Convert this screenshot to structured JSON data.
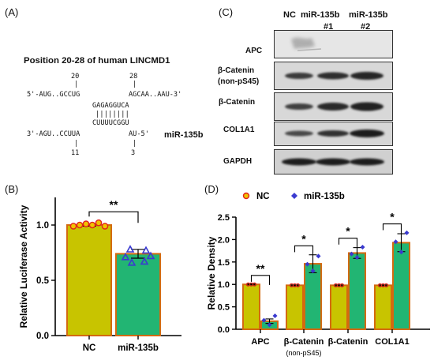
{
  "panels": {
    "a": {
      "letter": "(A)",
      "title": "Position 20-28 of human LINCMD1",
      "num_top_left": "20",
      "num_top_right": "28",
      "seq_top_left": "5'-AUG..GCCUG",
      "seq_top_right": "AGCAA..AAU-3'",
      "seq_mid_top": "GAGAGGUCA",
      "pair_bars": "||||||||",
      "seq_mid_bottom": "CUUUUCGGU",
      "seq_bottom_left": "3'-AGU..CCUUA",
      "seq_bottom_right": "AU-5'",
      "mirna_label": "miR-135b",
      "num_bottom_left": "11",
      "num_bottom_right": "3"
    },
    "b": {
      "letter": "(B)"
    },
    "c": {
      "letter": "(C)",
      "header_nc": "NC",
      "header_m1": "miR-135b",
      "header_m2": "miR-135b",
      "header_s1": "#1",
      "header_s2": "#2",
      "rows": [
        "APC",
        "β-Catenin",
        "(non-pS45)",
        "β-Catenin",
        "COL1A1",
        "GAPDH"
      ]
    },
    "d": {
      "letter": "(D)"
    }
  },
  "chart_data": [
    {
      "type": "bar",
      "panel": "B",
      "categories": [
        "NC",
        "miR-135b"
      ],
      "values": [
        1.0,
        0.74
      ],
      "error": [
        0.01,
        0.04
      ],
      "points": [
        [
          0.99,
          1.0,
          1.01,
          1.0,
          1.02,
          0.99
        ],
        [
          0.78,
          0.77,
          0.71,
          0.72,
          0.66,
          0.67
        ]
      ],
      "ylabel": "Relative Luciferase Activity",
      "xlabel": "",
      "ylim": [
        0,
        1.25
      ],
      "yticks": [
        "0.0",
        "0.5",
        "1.0"
      ],
      "significance": "**",
      "colors": [
        "#c8c400",
        "#22b573"
      ],
      "point_colors": [
        "#e0221b",
        "#3a3ad0"
      ]
    },
    {
      "type": "bar",
      "panel": "D",
      "groups": [
        "APC",
        "β-Catenin",
        "β-Catenin",
        "COL1A1"
      ],
      "group_sublabels": [
        "",
        "(non-pS45)",
        "",
        ""
      ],
      "series": [
        {
          "name": "NC",
          "values": [
            1.0,
            0.98,
            0.98,
            0.98
          ],
          "error": [
            0.01,
            0.01,
            0.01,
            0.01
          ]
        },
        {
          "name": "miR-135b",
          "values": [
            0.18,
            1.46,
            1.7,
            1.93
          ],
          "error": [
            0.05,
            0.2,
            0.12,
            0.2
          ]
        }
      ],
      "points": [
        [
          0.1,
          0.2,
          0.3
        ],
        [
          1.3,
          1.45,
          1.63
        ],
        [
          1.6,
          1.68,
          1.83
        ],
        [
          1.72,
          1.95,
          2.15
        ]
      ],
      "ylabel": "Relative Density",
      "ylim": [
        0,
        2.5
      ],
      "yticks": [
        "0.0",
        "0.5",
        "1.0",
        "1.5",
        "2.0",
        "2.5"
      ],
      "significance": [
        "**",
        "*",
        "*",
        "*"
      ],
      "legend_position": "top",
      "colors": [
        "#c8c400",
        "#22b573"
      ],
      "point_colors": [
        "#e0221b",
        "#3a3ad0"
      ]
    }
  ]
}
